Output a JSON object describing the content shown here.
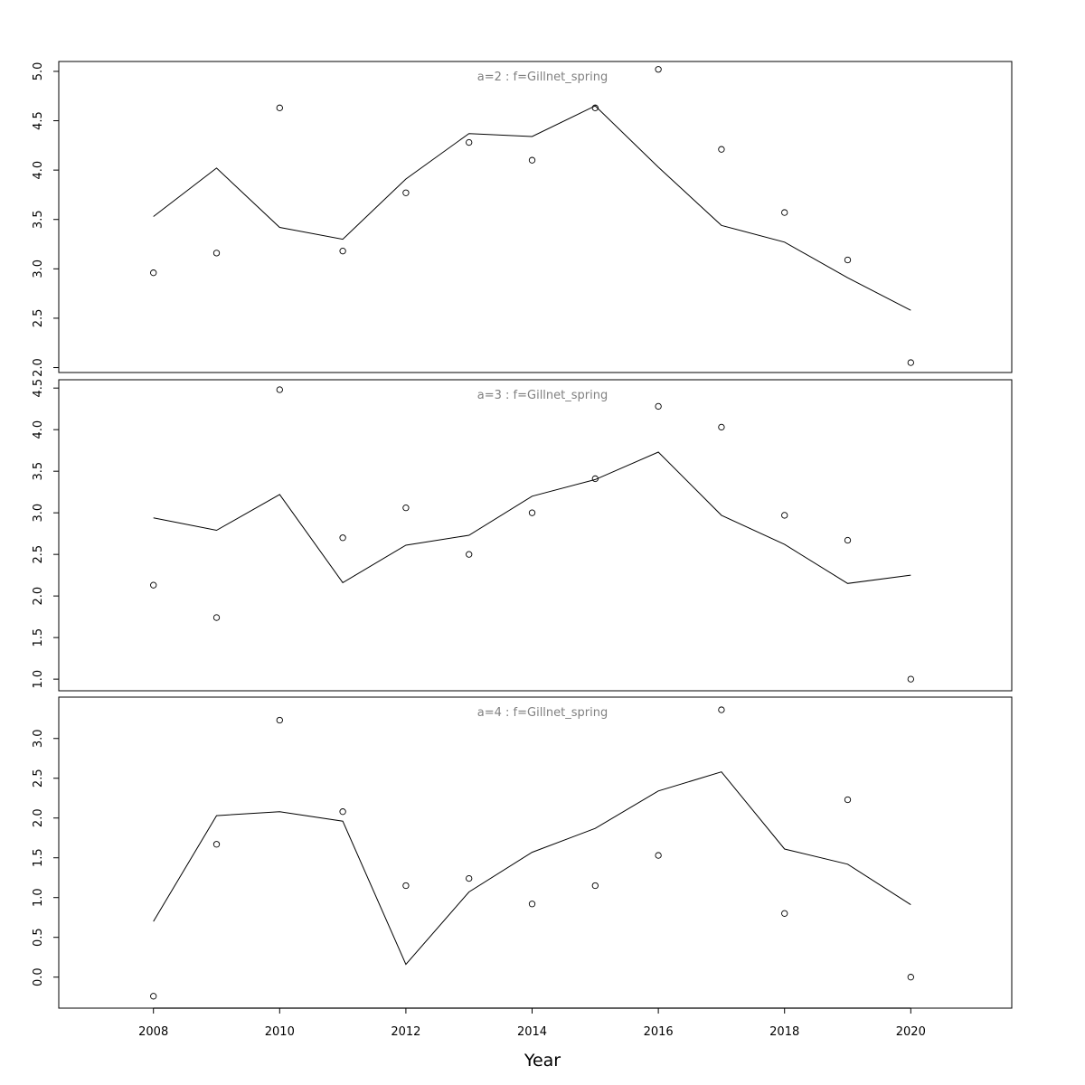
{
  "xlabel": "Year",
  "x_ticks": [
    2008,
    2010,
    2012,
    2014,
    2016,
    2018,
    2020
  ],
  "chart_data": [
    {
      "type": "line",
      "title": "a=2  :  f=Gillnet_spring",
      "xlabel": "",
      "ylabel": "",
      "xlim": [
        2006.5,
        2021.6
      ],
      "ylim": [
        1.95,
        5.1
      ],
      "y_ticks": [
        "2.0",
        "2.5",
        "3.0",
        "3.5",
        "4.0",
        "4.5",
        "5.0"
      ],
      "x": [
        2008,
        2009,
        2010,
        2011,
        2012,
        2013,
        2014,
        2015,
        2016,
        2017,
        2018,
        2019,
        2020
      ],
      "fitted": [
        3.53,
        4.02,
        3.42,
        3.3,
        3.91,
        4.37,
        4.34,
        4.65,
        4.03,
        3.44,
        3.27,
        2.91,
        2.58
      ],
      "observed": [
        2.96,
        3.16,
        4.63,
        3.18,
        3.77,
        4.28,
        4.1,
        4.63,
        5.02,
        4.21,
        3.57,
        3.09,
        2.05
      ]
    },
    {
      "type": "line",
      "title": "a=3  :  f=Gillnet_spring",
      "xlabel": "",
      "ylabel": "",
      "xlim": [
        2006.5,
        2021.6
      ],
      "ylim": [
        0.86,
        4.6
      ],
      "y_ticks": [
        "1.0",
        "1.5",
        "2.0",
        "2.5",
        "3.0",
        "3.5",
        "4.0",
        "4.5"
      ],
      "x": [
        2008,
        2009,
        2010,
        2011,
        2012,
        2013,
        2014,
        2015,
        2016,
        2017,
        2018,
        2019,
        2020
      ],
      "fitted": [
        2.94,
        2.79,
        3.22,
        2.16,
        2.61,
        2.73,
        3.2,
        3.4,
        3.73,
        2.97,
        2.62,
        2.15,
        2.25
      ],
      "observed": [
        2.13,
        1.74,
        4.48,
        2.7,
        3.06,
        2.5,
        3.0,
        3.41,
        4.28,
        4.03,
        2.97,
        2.67,
        1.0
      ]
    },
    {
      "type": "line",
      "title": "a=4  :  f=Gillnet_spring",
      "xlabel": "",
      "ylabel": "",
      "xlim": [
        2006.5,
        2021.6
      ],
      "ylim": [
        -0.39,
        3.52
      ],
      "y_ticks": [
        "0.0",
        "0.5",
        "1.0",
        "1.5",
        "2.0",
        "2.5",
        "3.0"
      ],
      "x": [
        2008,
        2009,
        2010,
        2011,
        2012,
        2013,
        2014,
        2015,
        2016,
        2017,
        2018,
        2019,
        2020
      ],
      "fitted": [
        0.7,
        2.03,
        2.08,
        1.96,
        0.16,
        1.07,
        1.57,
        1.87,
        2.34,
        2.58,
        1.61,
        1.42,
        0.91
      ],
      "observed": [
        -0.24,
        1.67,
        3.23,
        2.08,
        1.15,
        1.24,
        0.92,
        1.15,
        1.53,
        3.36,
        0.8,
        2.23,
        0.0
      ]
    }
  ]
}
